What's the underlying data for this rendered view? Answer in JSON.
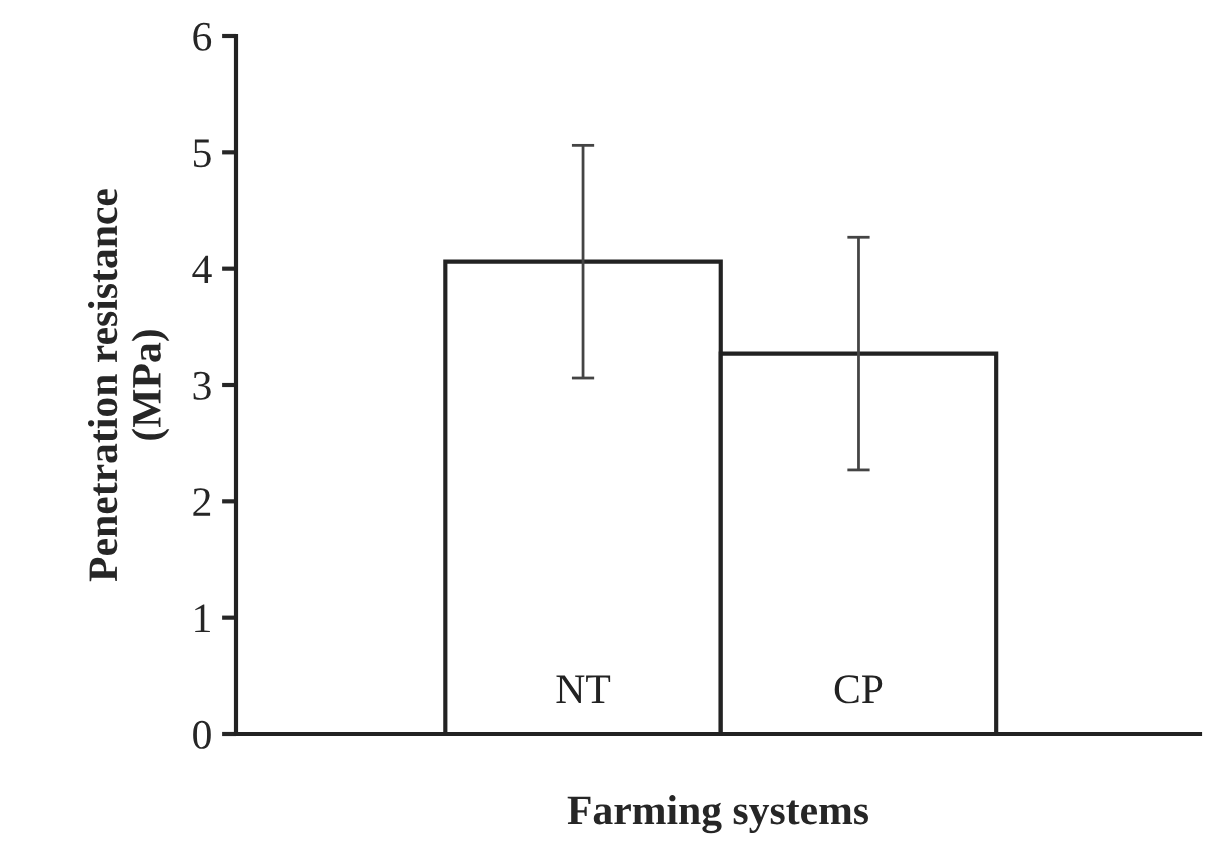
{
  "chart_data": {
    "type": "bar",
    "xlabel": "Farming systems",
    "ylabel": "Penetration resistance\n(MPa)",
    "categories": [
      "NT",
      "CP"
    ],
    "values": [
      4.06,
      3.27
    ],
    "errors": [
      1.0,
      1.0
    ],
    "color": "#ffffff",
    "ylim": [
      0,
      6
    ],
    "yticks": [
      0,
      1,
      2,
      3,
      4,
      5,
      6
    ],
    "grid": false,
    "legend": false
  }
}
